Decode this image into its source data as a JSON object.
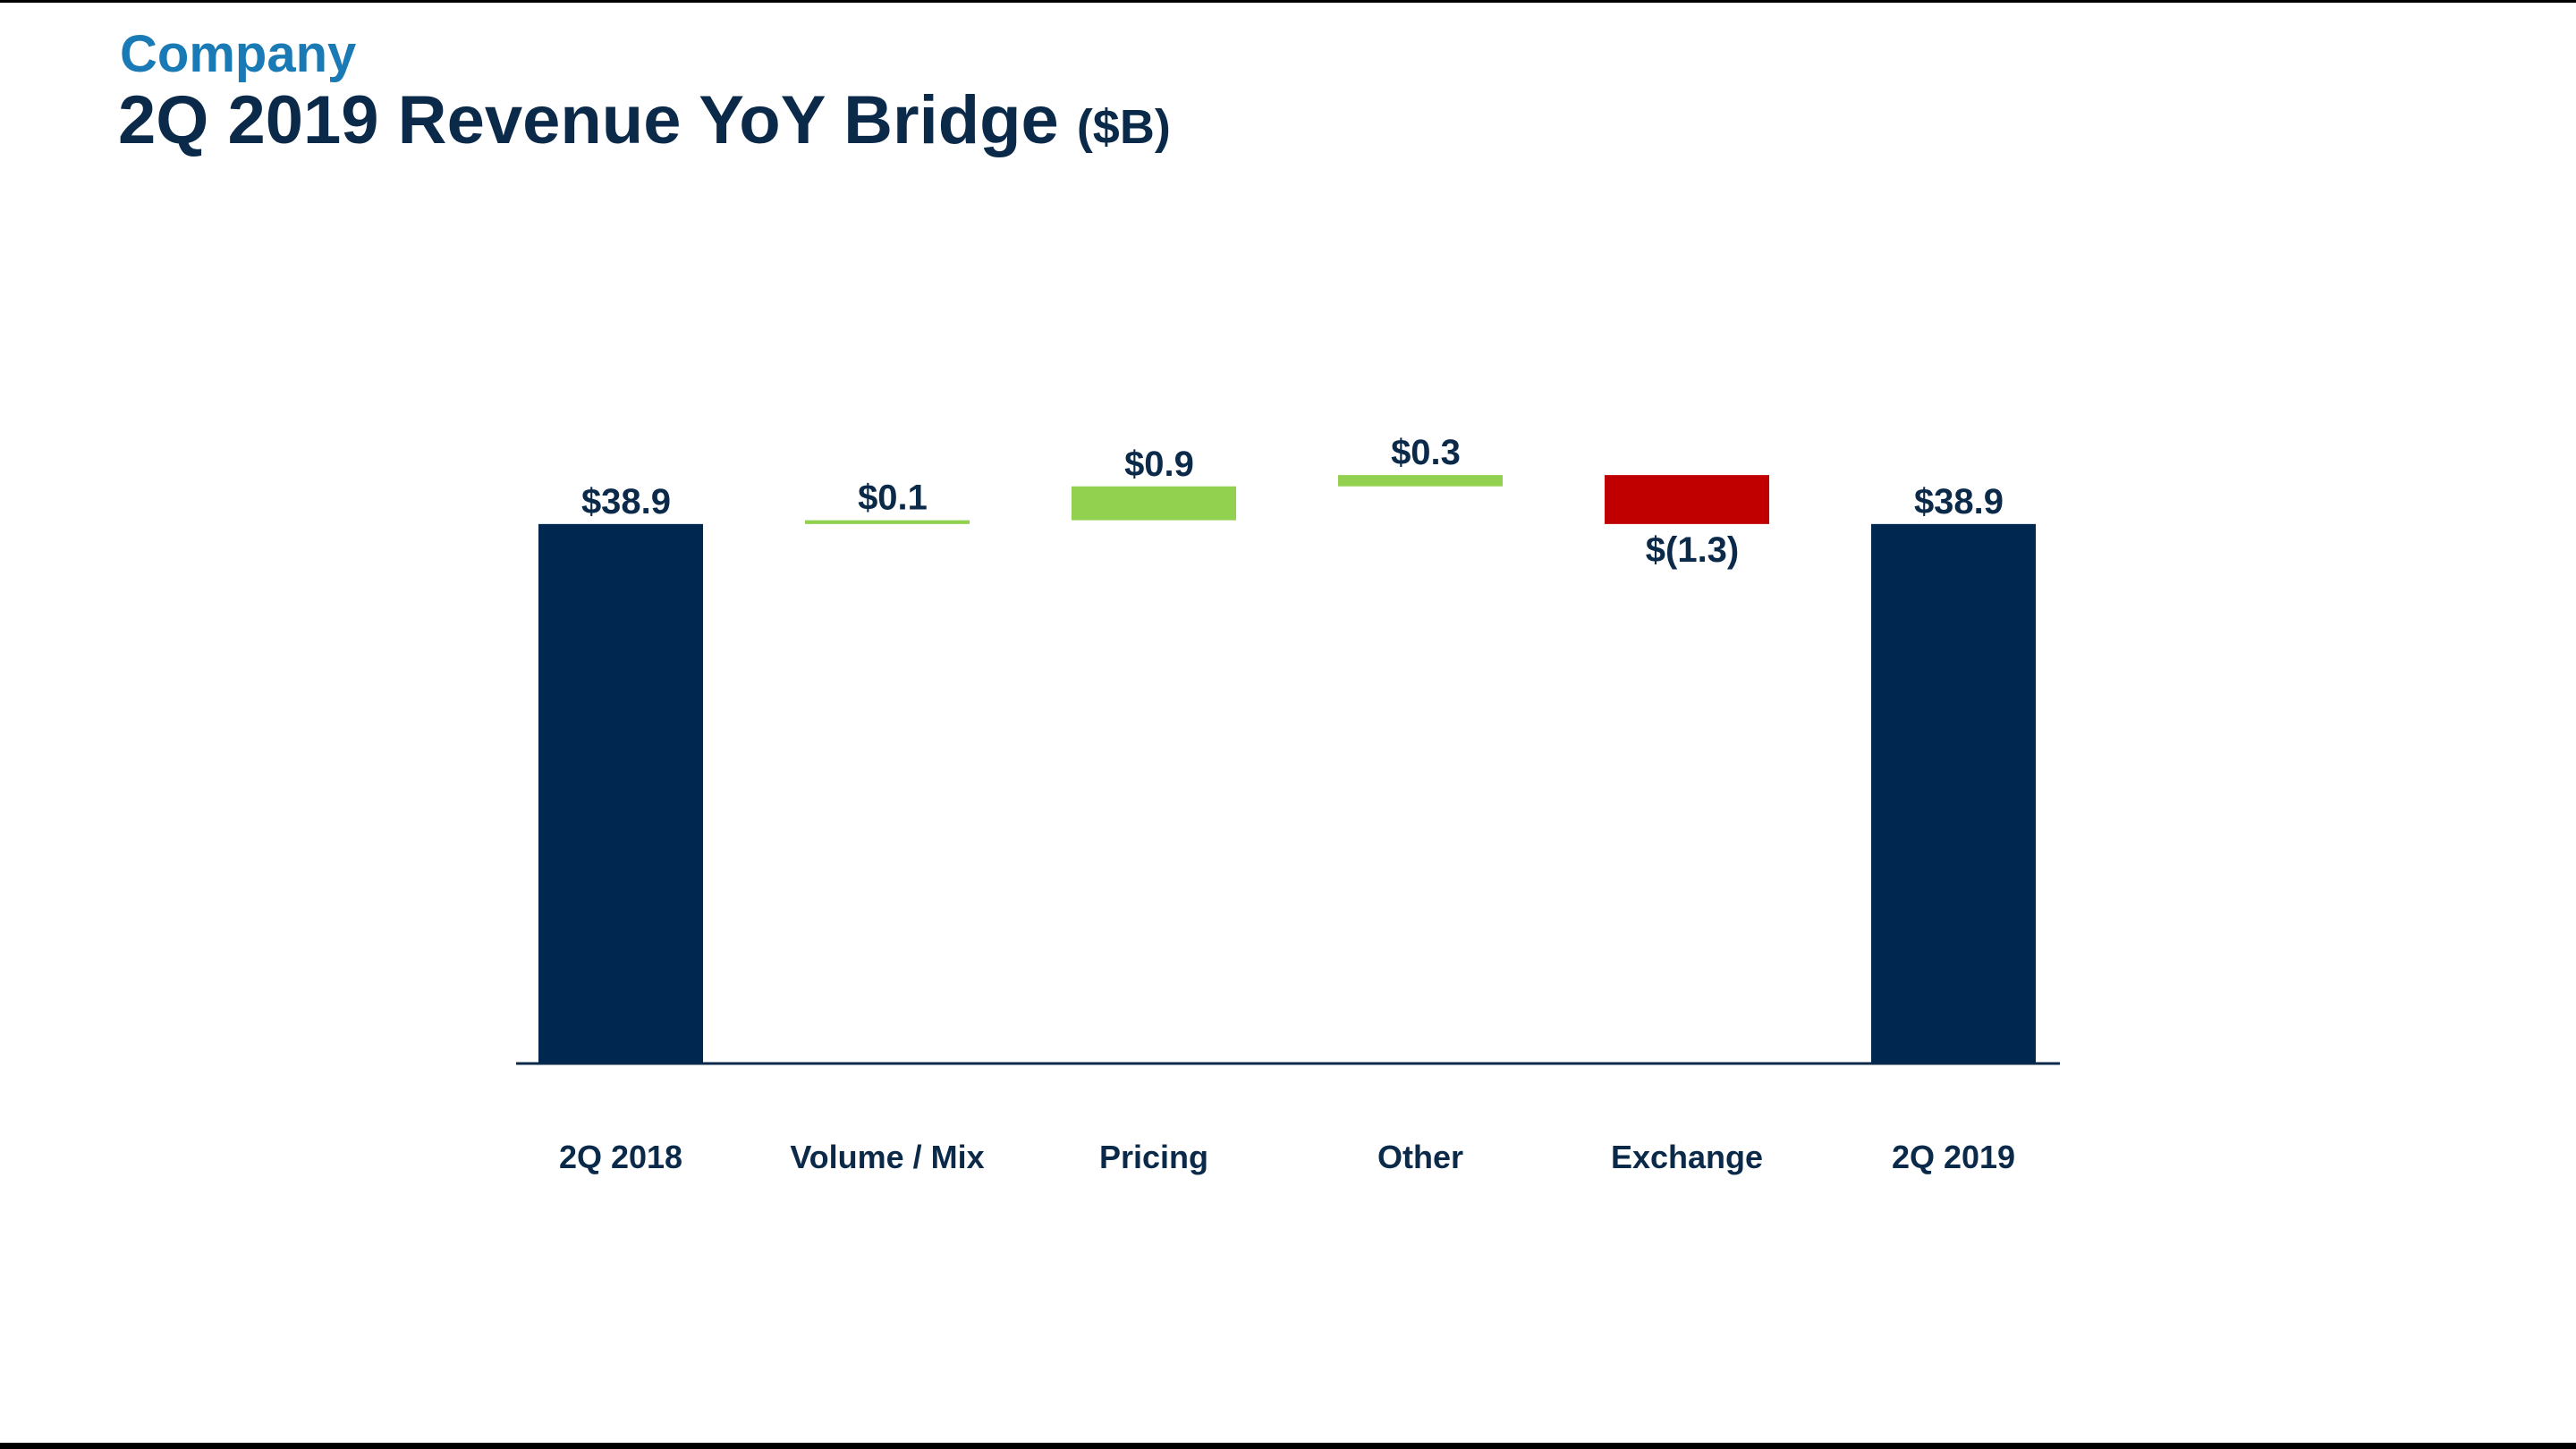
{
  "chart_data": {
    "type": "waterfall",
    "supertitle": "Company",
    "title": "2Q 2019 Revenue YoY Bridge",
    "title_unit": "($B)",
    "categories": [
      "2Q 2018",
      "Volume / Mix",
      "Pricing",
      "Other",
      "Exchange",
      "2Q 2019"
    ],
    "values": [
      38.9,
      0.1,
      0.9,
      0.3,
      -1.3,
      38.9
    ],
    "value_labels": [
      "$38.9",
      "$0.1",
      "$0.9",
      "$0.3",
      "$(1.3)",
      "$38.9"
    ],
    "totals": [
      true,
      false,
      false,
      false,
      false,
      true
    ],
    "colors": {
      "total": "#002750",
      "increase": "#92d050",
      "decrease": "#c00000"
    },
    "ylim": [
      24.6,
      45
    ]
  }
}
